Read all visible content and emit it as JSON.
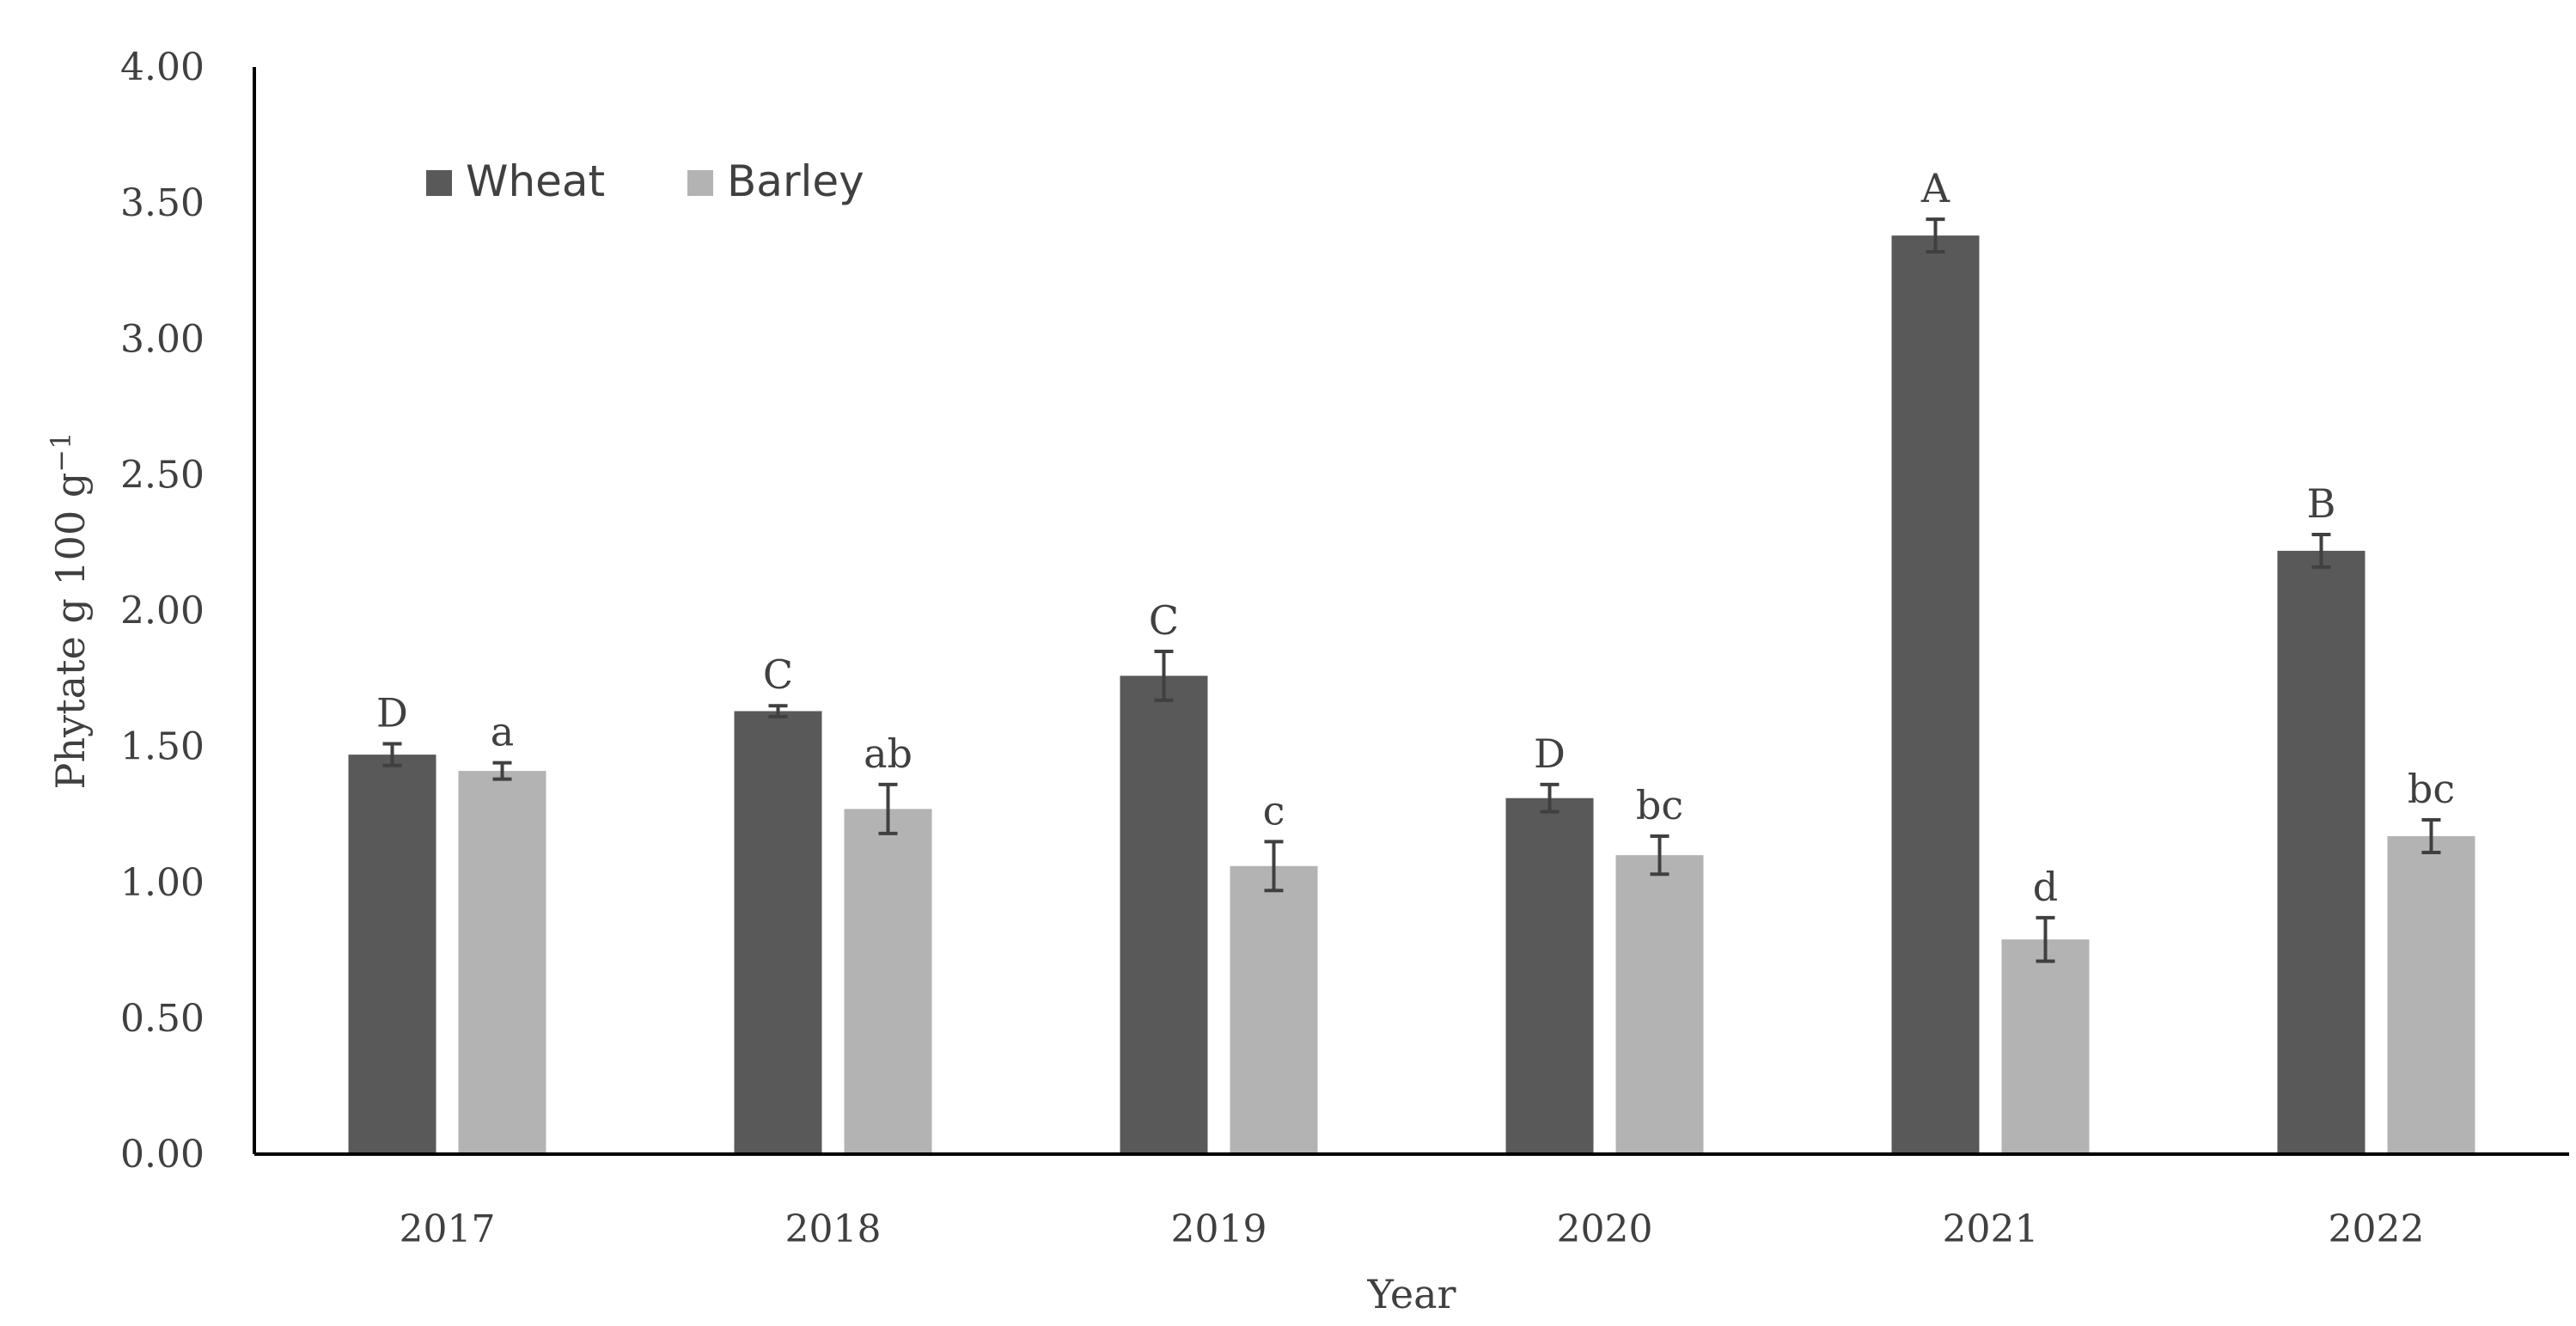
{
  "chart_data": {
    "type": "bar",
    "xlabel": "Year",
    "ylabel": "Phytate g 100 g",
    "ylabel_superscript": "−1",
    "ylim": [
      0,
      4
    ],
    "yticks": [
      "0.00",
      "0.50",
      "1.00",
      "1.50",
      "2.00",
      "2.50",
      "3.00",
      "3.50",
      "4.00"
    ],
    "categories": [
      "2017",
      "2018",
      "2019",
      "2020",
      "2021",
      "2022"
    ],
    "grid": false,
    "legend": "top-left",
    "series": [
      {
        "name": "Wheat",
        "color": "#595959",
        "values": [
          1.47,
          1.63,
          1.76,
          1.31,
          3.38,
          2.22
        ],
        "errors": [
          0.04,
          0.02,
          0.09,
          0.05,
          0.06,
          0.06
        ],
        "labels": [
          "D",
          "C",
          "C",
          "D",
          "A",
          "B"
        ]
      },
      {
        "name": "Barley",
        "color": "#b3b3b3",
        "values": [
          1.41,
          1.27,
          1.06,
          1.1,
          0.79,
          1.17
        ],
        "errors": [
          0.03,
          0.09,
          0.09,
          0.07,
          0.08,
          0.06
        ],
        "labels": [
          "a",
          "ab",
          "c",
          "bc",
          "d",
          "bc"
        ]
      }
    ]
  }
}
